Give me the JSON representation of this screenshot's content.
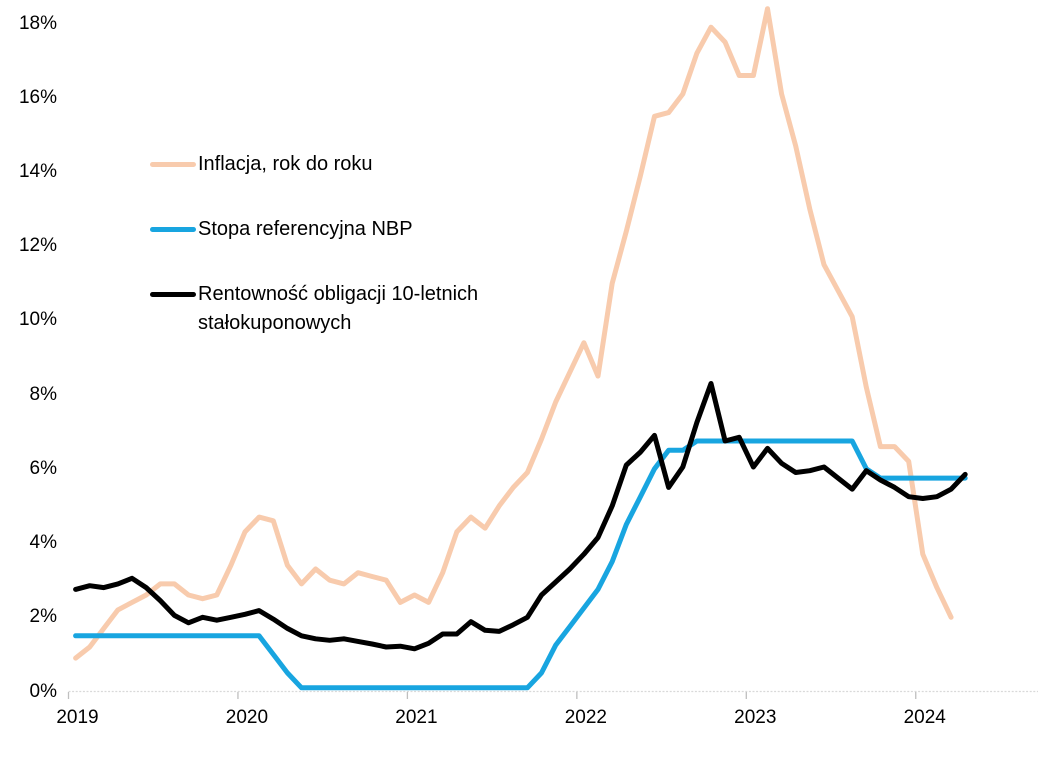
{
  "chart_data": {
    "type": "line",
    "title": "",
    "x_start": "2019-01",
    "x_frequency": "monthly",
    "x_axis": {
      "tick_labels": [
        "2019",
        "2020",
        "2021",
        "2022",
        "2023",
        "2024"
      ]
    },
    "y_axis": {
      "min": 0,
      "max": 18,
      "step": 2,
      "unit": "%",
      "tick_labels": [
        "0%",
        "2%",
        "4%",
        "6%",
        "8%",
        "10%",
        "12%",
        "14%",
        "16%",
        "18%"
      ]
    },
    "grid": false,
    "legend_position": "inside-top-left",
    "background": "#FFFFFF",
    "axis_color": "#D9D9D9",
    "tick_color": "#BFBFBF",
    "text_color": "#000000",
    "series": [
      {
        "name": "Inflacja, rok do roku",
        "color": "#F8CBAD",
        "x_end": "2024-03",
        "values": [
          0.9,
          1.2,
          1.7,
          2.2,
          2.4,
          2.6,
          2.9,
          2.9,
          2.6,
          2.5,
          2.6,
          3.4,
          4.3,
          4.7,
          4.6,
          3.4,
          2.9,
          3.3,
          3.0,
          2.9,
          3.2,
          3.1,
          3.0,
          2.4,
          2.6,
          2.4,
          3.2,
          4.3,
          4.7,
          4.4,
          5.0,
          5.5,
          5.9,
          6.8,
          7.8,
          8.6,
          9.4,
          8.5,
          11.0,
          12.4,
          13.9,
          15.5,
          15.6,
          16.1,
          17.2,
          17.9,
          17.5,
          16.6,
          16.6,
          18.4,
          16.1,
          14.7,
          13.0,
          11.5,
          10.8,
          10.1,
          8.2,
          6.6,
          6.6,
          6.2,
          3.7,
          2.8,
          2.0
        ]
      },
      {
        "name": "Stopa referencyjna NBP",
        "color": "#18A5E0",
        "x_end": "2024-04",
        "values": [
          1.5,
          1.5,
          1.5,
          1.5,
          1.5,
          1.5,
          1.5,
          1.5,
          1.5,
          1.5,
          1.5,
          1.5,
          1.5,
          1.5,
          1.0,
          0.5,
          0.1,
          0.1,
          0.1,
          0.1,
          0.1,
          0.1,
          0.1,
          0.1,
          0.1,
          0.1,
          0.1,
          0.1,
          0.1,
          0.1,
          0.1,
          0.1,
          0.1,
          0.5,
          1.25,
          1.75,
          2.25,
          2.75,
          3.5,
          4.5,
          5.25,
          6.0,
          6.5,
          6.5,
          6.75,
          6.75,
          6.75,
          6.75,
          6.75,
          6.75,
          6.75,
          6.75,
          6.75,
          6.75,
          6.75,
          6.75,
          6.0,
          5.75,
          5.75,
          5.75,
          5.75,
          5.75,
          5.75,
          5.75
        ]
      },
      {
        "name": "Rentowność obligacji 10-letnich stałokuponowych",
        "color": "#000000",
        "x_end": "2024-04",
        "values": [
          2.75,
          2.85,
          2.8,
          2.9,
          3.05,
          2.8,
          2.45,
          2.05,
          1.85,
          2.0,
          1.92,
          2.0,
          2.08,
          2.18,
          1.95,
          1.7,
          1.5,
          1.42,
          1.38,
          1.42,
          1.35,
          1.28,
          1.2,
          1.22,
          1.15,
          1.3,
          1.55,
          1.55,
          1.88,
          1.65,
          1.62,
          1.8,
          2.0,
          2.6,
          2.95,
          3.3,
          3.7,
          4.15,
          5.0,
          6.1,
          6.45,
          6.9,
          5.5,
          6.05,
          7.25,
          8.3,
          6.75,
          6.85,
          6.05,
          6.55,
          6.15,
          5.9,
          5.95,
          6.05,
          5.75,
          5.45,
          5.95,
          5.7,
          5.5,
          5.25,
          5.2,
          5.25,
          5.45,
          5.85
        ]
      }
    ]
  }
}
